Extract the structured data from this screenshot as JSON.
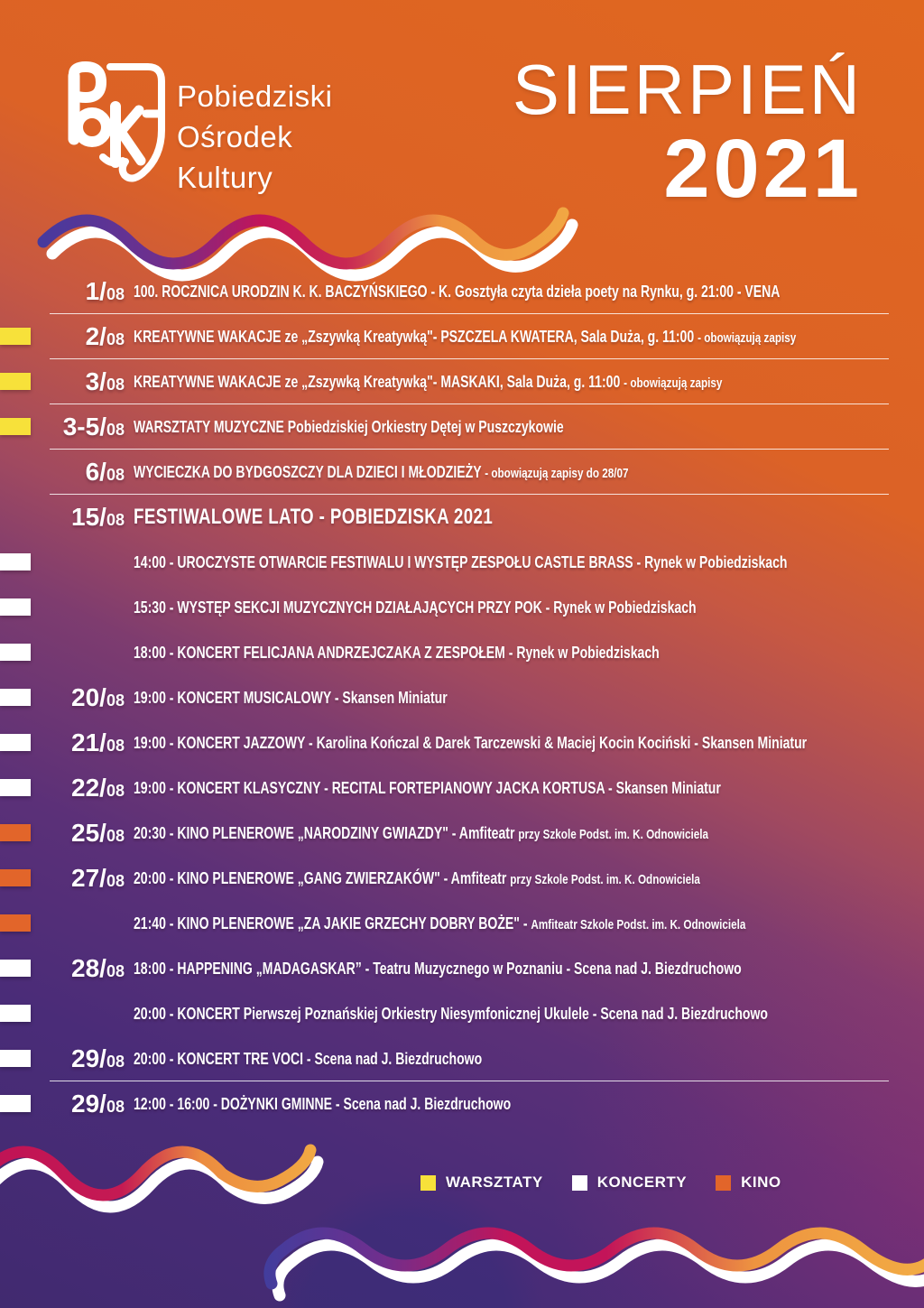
{
  "poster": {
    "org": {
      "lines": [
        "Pobiedziski",
        "Ośrodek",
        "Kultury"
      ]
    },
    "title": {
      "month": "SIERPIEŃ",
      "year": "2021"
    },
    "colors": {
      "bg_top_orange": "#E0671F",
      "bg_bottom_purple": "#412A70",
      "wave_blue": "#453A9E",
      "wave_crimson": "#C31459",
      "wave_yellow": "#F2AC44",
      "divider": "#FFFFFF"
    },
    "category_colors": {
      "warsztaty": "#F7E13A",
      "koncerty": "#FFFFFF",
      "kino": "#E2652A"
    },
    "legend": [
      {
        "label": "WARSZTATY",
        "category": "warsztaty"
      },
      {
        "label": "KONCERTY",
        "category": "koncerty"
      },
      {
        "label": "KINO",
        "category": "kino"
      }
    ],
    "events": [
      {
        "date": "1/",
        "suffix": "08",
        "category": null,
        "divider": true,
        "header": false,
        "segments": [
          {
            "t": "100. ROCZNICA URODZIN K. K. BACZYŃSKIEGO - K. Gosztyła czyta dzieła poety na Rynku, g. 21:00 - VENA",
            "small": false
          }
        ]
      },
      {
        "date": "2/",
        "suffix": "08",
        "category": "warsztaty",
        "divider": true,
        "header": false,
        "segments": [
          {
            "t": "KREATYWNE WAKACJE ze „Zszywką Kreatywką\"- PSZCZELA KWATERA, Sala Duża, g. 11:00 ",
            "small": false
          },
          {
            "t": "- obowiązują zapisy",
            "small": true
          }
        ]
      },
      {
        "date": "3/",
        "suffix": "08",
        "category": "warsztaty",
        "divider": true,
        "header": false,
        "segments": [
          {
            "t": "KREATYWNE WAKACJE ze „Zszywką Kreatywką\"- MASKAKI, Sala Duża, g. 11:00 ",
            "small": false
          },
          {
            "t": "- obowiązują zapisy",
            "small": true
          }
        ]
      },
      {
        "date": "3-5/",
        "suffix": "08",
        "category": "warsztaty",
        "divider": true,
        "header": false,
        "segments": [
          {
            "t": "WARSZTATY MUZYCZNE Pobiedziskiej Orkiestry Dętej w Puszczykowie",
            "small": false
          }
        ]
      },
      {
        "date": "6/",
        "suffix": "08",
        "category": null,
        "divider": true,
        "header": false,
        "segments": [
          {
            "t": "WYCIECZKA DO BYDGOSZCZY DLA DZIECI I MŁODZIEŻY ",
            "small": false
          },
          {
            "t": "- obowiązują zapisy do  28/07",
            "small": true
          }
        ]
      },
      {
        "date": "15/",
        "suffix": "08",
        "category": null,
        "divider": false,
        "header": true,
        "segments": [
          {
            "t": "FESTIWALOWE LATO - POBIEDZISKA 2021",
            "small": false
          }
        ]
      },
      {
        "date": "",
        "suffix": "",
        "category": "koncerty",
        "divider": false,
        "header": false,
        "segments": [
          {
            "t": "14:00 - UROCZYSTE OTWARCIE FESTIWALU I WYSTĘP ZESPOŁU CASTLE BRASS - Rynek w Pobiedziskach",
            "small": false
          }
        ]
      },
      {
        "date": "",
        "suffix": "",
        "category": "koncerty",
        "divider": false,
        "header": false,
        "segments": [
          {
            "t": "15:30 - WYSTĘP SEKCJI MUZYCZNYCH DZIAŁAJĄCYCH PRZY POK - Rynek w Pobiedziskach",
            "small": false
          }
        ]
      },
      {
        "date": "",
        "suffix": "",
        "category": "koncerty",
        "divider": false,
        "header": false,
        "segments": [
          {
            "t": "18:00 - KONCERT FELICJANA ANDRZEJCZAKA Z ZESPOŁEM - Rynek w Pobiedziskach",
            "small": false
          }
        ]
      },
      {
        "date": "20/",
        "suffix": "08",
        "category": "koncerty",
        "divider": false,
        "header": false,
        "segments": [
          {
            "t": "19:00 - KONCERT MUSICALOWY - Skansen Miniatur",
            "small": false
          }
        ]
      },
      {
        "date": "21/",
        "suffix": "08",
        "category": "koncerty",
        "divider": false,
        "header": false,
        "segments": [
          {
            "t": "19:00 - KONCERT JAZZOWY - Karolina Kończal & Darek Tarczewski & Maciej Kocin Kociński - Skansen Miniatur",
            "small": false
          }
        ]
      },
      {
        "date": "22/",
        "suffix": "08",
        "category": "koncerty",
        "divider": false,
        "header": false,
        "segments": [
          {
            "t": "19:00 - KONCERT KLASYCZNY - RECITAL  FORTEPIANOWY JACKA KORTUSA  - Skansen Miniatur",
            "small": false
          }
        ]
      },
      {
        "date": "25/",
        "suffix": "08",
        "category": "kino",
        "divider": false,
        "header": false,
        "segments": [
          {
            "t": "20:30 - KINO PLENEROWE „NARODZINY GWIAZDY\" - Amfiteatr ",
            "small": false
          },
          {
            "t": "przy Szkole Podst. im. K. Odnowiciela",
            "small": true
          }
        ]
      },
      {
        "date": "27/",
        "suffix": "08",
        "category": "kino",
        "divider": false,
        "header": false,
        "segments": [
          {
            "t": "20:00 - KINO PLENEROWE „GANG ZWIERZAKÓW\" - Amfiteatr ",
            "small": false
          },
          {
            "t": "przy Szkole Podst. im. K. Odnowiciela",
            "small": true
          }
        ]
      },
      {
        "date": "",
        "suffix": "",
        "category": "kino",
        "divider": false,
        "header": false,
        "segments": [
          {
            "t": "21:40 - KINO PLENEROWE „ZA JAKIE GRZECHY DOBRY BOŻE\" - ",
            "small": false
          },
          {
            "t": "Amfiteatr Szkole Podst. im. K. Odnowiciela",
            "small": true
          }
        ]
      },
      {
        "date": "28/",
        "suffix": "08",
        "category": "koncerty",
        "divider": false,
        "header": false,
        "segments": [
          {
            "t": "18:00 - HAPPENING  „MADAGASKAR” - Teatru Muzycznego w Poznaniu - Scena nad J. Biezdruchowo",
            "small": false
          }
        ]
      },
      {
        "date": "",
        "suffix": "",
        "category": "koncerty",
        "divider": false,
        "header": false,
        "segments": [
          {
            "t": "20:00 - KONCERT Pierwszej Poznańskiej Orkiestry Niesymfonicznej Ukulele - Scena nad J. Biezdruchowo",
            "small": false
          }
        ]
      },
      {
        "date": "29/",
        "suffix": "08",
        "category": "koncerty",
        "divider": true,
        "header": false,
        "segments": [
          {
            "t": "20:00 - KONCERT TRE VOCI - Scena nad J. Biezdruchowo",
            "small": false
          }
        ]
      },
      {
        "date": "29/",
        "suffix": "08",
        "category": "koncerty",
        "divider": false,
        "header": false,
        "segments": [
          {
            "t": "12:00 - 16:00  - DOŻYNKI GMINNE - Scena nad J. Biezdruchowo",
            "small": false
          }
        ]
      }
    ]
  }
}
